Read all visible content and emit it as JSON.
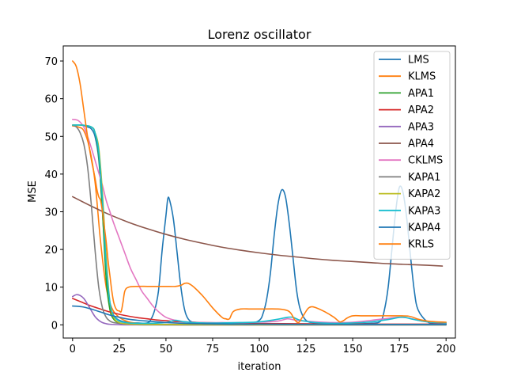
{
  "chart_data": {
    "type": "line",
    "title": "Lorenz oscillator",
    "xlabel": "iteration",
    "ylabel": "MSE",
    "xlim": [
      -5,
      205
    ],
    "ylim": [
      -3.5,
      74
    ],
    "xticks": [
      0,
      25,
      50,
      75,
      100,
      125,
      150,
      175,
      200
    ],
    "yticks": [
      0,
      10,
      20,
      30,
      40,
      50,
      60,
      70
    ],
    "grid": false,
    "legend_position": "top-right",
    "series": [
      {
        "name": "LMS",
        "color": "#1f77b4",
        "x": [
          0,
          5,
          8,
          10,
          12,
          14,
          16,
          18,
          20,
          22,
          25,
          30,
          35,
          40,
          42,
          44,
          46,
          48,
          50,
          51,
          52,
          54,
          56,
          58,
          60,
          62,
          65,
          70,
          80,
          90,
          95,
          100,
          102,
          104,
          106,
          108,
          110,
          112,
          114,
          116,
          118,
          120,
          122,
          125,
          130,
          140,
          150,
          160,
          165,
          167,
          169,
          171,
          173,
          175,
          177,
          179,
          181,
          183,
          185,
          190,
          195,
          200
        ],
        "y": [
          53,
          53,
          52.5,
          52,
          50,
          44,
          30,
          14,
          5,
          2.5,
          1.2,
          0.6,
          0.5,
          0.5,
          1.5,
          4,
          9,
          20,
          29,
          33.5,
          33,
          28,
          19,
          10,
          4,
          1.5,
          0.6,
          0.4,
          0.3,
          0.3,
          0.3,
          1.2,
          3,
          7,
          14,
          24,
          32,
          35.8,
          34,
          27,
          18,
          9,
          4,
          1.2,
          0.5,
          0.3,
          0.3,
          0.4,
          1,
          4,
          10,
          20,
          30,
          36.5,
          35,
          28,
          18,
          9,
          4,
          0.8,
          0.4,
          0.4
        ]
      },
      {
        "name": "KLMS",
        "color": "#ff7f0e",
        "x": [
          0,
          3,
          6,
          9,
          12,
          15,
          18,
          21,
          25,
          30,
          35,
          40,
          45,
          50,
          60,
          70,
          80,
          90,
          100,
          120,
          140,
          160,
          180,
          200
        ],
        "y": [
          52.8,
          52.5,
          51.5,
          47,
          38,
          22,
          10,
          4.5,
          2,
          0.8,
          0.4,
          0.2,
          0.1,
          0.05,
          0,
          0,
          0,
          0,
          0,
          0,
          0,
          0,
          0,
          0
        ]
      },
      {
        "name": "APA1",
        "color": "#2ca02c",
        "x": [
          0,
          5,
          10,
          12,
          14,
          16,
          18,
          20,
          22,
          25,
          30,
          40,
          50,
          60,
          80,
          100,
          120,
          140,
          160,
          180,
          200
        ],
        "y": [
          53,
          53,
          52.5,
          51,
          45,
          30,
          12,
          4,
          1.5,
          0.5,
          0.1,
          0,
          0,
          0,
          0,
          0,
          0,
          0,
          0,
          0,
          0
        ]
      },
      {
        "name": "APA2",
        "color": "#d62728",
        "x": [
          0,
          5,
          10,
          15,
          20,
          25,
          30,
          35,
          40,
          45,
          50,
          55,
          60,
          70,
          80,
          90,
          100,
          120,
          140,
          160,
          180,
          200
        ],
        "y": [
          7,
          6,
          5,
          4.2,
          3.4,
          2.8,
          2.3,
          1.9,
          1.6,
          1.3,
          1.1,
          0.9,
          0.8,
          0.6,
          0.5,
          0.4,
          0.35,
          0.3,
          0.25,
          0.2,
          0.2,
          0.2
        ]
      },
      {
        "name": "APA3",
        "color": "#9467bd",
        "x": [
          0,
          2,
          4,
          6,
          8,
          10,
          12,
          14,
          16,
          18,
          20,
          25,
          30,
          40,
          50,
          60,
          80,
          100,
          120,
          140,
          160,
          180,
          200
        ],
        "y": [
          7.5,
          8,
          7.8,
          7,
          5.5,
          3.8,
          2.2,
          1.2,
          0.6,
          0.3,
          0.15,
          0.05,
          0,
          0,
          0,
          0,
          0,
          0,
          0,
          0,
          0,
          0,
          0
        ]
      },
      {
        "name": "APA4",
        "color": "#8c564b",
        "x": [
          0,
          10,
          20,
          30,
          40,
          50,
          60,
          70,
          80,
          90,
          100,
          110,
          120,
          130,
          140,
          150,
          160,
          170,
          180,
          190,
          198
        ],
        "y": [
          34,
          31.5,
          29.2,
          27.2,
          25.5,
          24,
          22.7,
          21.6,
          20.6,
          19.8,
          19.1,
          18.5,
          18,
          17.5,
          17.1,
          16.8,
          16.5,
          16.2,
          16,
          15.8,
          15.6
        ]
      },
      {
        "name": "CKLMS",
        "color": "#e377c2",
        "x": [
          0,
          3,
          6,
          8,
          10,
          13,
          16,
          18,
          20,
          22,
          25,
          28,
          31,
          34,
          37,
          40,
          43,
          46,
          50,
          55,
          60,
          70,
          80,
          90,
          100,
          110,
          115,
          120,
          130,
          140,
          150,
          160,
          170,
          175,
          180,
          185,
          190,
          195,
          200
        ],
        "y": [
          54.5,
          54.2,
          52.5,
          50,
          47,
          42,
          37,
          33,
          30,
          27,
          23,
          19,
          15,
          12,
          9,
          7,
          5,
          3.5,
          2,
          1.2,
          0.8,
          0.6,
          0.6,
          0.6,
          0.7,
          1,
          1.6,
          1.2,
          0.8,
          0.6,
          0.7,
          1.2,
          1.8,
          2,
          1.8,
          1.2,
          0.8,
          0.6,
          0.5
        ]
      },
      {
        "name": "KAPA1",
        "color": "#7f7f7f",
        "x": [
          0,
          2,
          4,
          6,
          8,
          10,
          12,
          14,
          16,
          18,
          20,
          22,
          25,
          30,
          35,
          40,
          50,
          60,
          80,
          100,
          120,
          140,
          160,
          180,
          200
        ],
        "y": [
          53,
          52.5,
          51,
          48,
          42,
          32,
          20,
          10,
          4.5,
          2,
          1,
          0.6,
          0.4,
          0.3,
          0.2,
          0.1,
          0,
          0,
          0,
          0,
          0,
          0,
          0,
          0,
          0
        ]
      },
      {
        "name": "KAPA2",
        "color": "#bcbd22",
        "x": [
          0,
          5,
          10,
          12,
          14,
          16,
          18,
          20,
          22,
          25,
          30,
          40,
          50,
          60,
          80,
          100,
          120,
          140,
          160,
          180,
          200
        ],
        "y": [
          53,
          53,
          52.5,
          51,
          47,
          35,
          18,
          6,
          2,
          0.6,
          0.2,
          0.1,
          0.1,
          0.1,
          0.1,
          0.1,
          0.1,
          0.1,
          0.1,
          0.1,
          0.1
        ]
      },
      {
        "name": "KAPA3",
        "color": "#17becf",
        "x": [
          0,
          5,
          10,
          12,
          14,
          16,
          18,
          20,
          22,
          25,
          30,
          40,
          50,
          55,
          60,
          70,
          80,
          90,
          100,
          110,
          115,
          118,
          122,
          130,
          140,
          150,
          160,
          170,
          175,
          178,
          182,
          190,
          200
        ],
        "y": [
          53,
          53,
          52.5,
          51,
          46,
          33,
          16,
          6,
          2.5,
          1,
          0.5,
          0.4,
          0.6,
          1.2,
          0.8,
          0.5,
          0.5,
          0.6,
          0.8,
          1.5,
          2,
          2,
          1.2,
          0.6,
          0.4,
          0.5,
          0.8,
          1.5,
          2,
          2,
          1.5,
          0.8,
          0.5
        ]
      },
      {
        "name": "KAPA4",
        "color": "#1f77b4",
        "x": [
          0,
          5,
          10,
          15,
          20,
          25,
          30,
          35,
          40,
          45,
          50,
          60,
          70,
          80,
          90,
          100,
          120,
          140,
          160,
          180,
          200
        ],
        "y": [
          5,
          4.8,
          4.2,
          3.4,
          2.6,
          2,
          1.5,
          1.2,
          1,
          0.8,
          0.6,
          0.4,
          0.3,
          0.25,
          0.2,
          0.2,
          0.15,
          0.15,
          0.1,
          0.1,
          0.1
        ]
      },
      {
        "name": "KRLS",
        "color": "#ff7f0e",
        "x": [
          0,
          2,
          4,
          6,
          8,
          10,
          12,
          13,
          14,
          15,
          16,
          17,
          18,
          19,
          20,
          21,
          22,
          23,
          24,
          25,
          26,
          27,
          28,
          30,
          35,
          40,
          45,
          50,
          55,
          58,
          60,
          62,
          65,
          70,
          75,
          80,
          82,
          84,
          86,
          90,
          95,
          100,
          110,
          115,
          117,
          119,
          121,
          123,
          126,
          128,
          130,
          135,
          140,
          143,
          145,
          147,
          150,
          155,
          160,
          170,
          180,
          185,
          190,
          195,
          200
        ],
        "y": [
          70,
          68.5,
          64,
          57,
          50,
          44,
          39,
          36,
          34,
          33,
          30,
          26,
          22,
          17,
          13,
          9,
          6,
          4.5,
          3.8,
          3.7,
          3.5,
          6,
          9,
          10,
          10.2,
          10.2,
          10.2,
          10.2,
          10.2,
          10.5,
          11,
          11,
          10,
          7.5,
          4.5,
          2,
          1.6,
          1.6,
          3.5,
          4.2,
          4.2,
          4.2,
          4.2,
          3.8,
          3,
          1.3,
          0.6,
          2,
          4.3,
          4.8,
          4.6,
          3.5,
          2,
          0.8,
          1.1,
          1.8,
          2.4,
          2.4,
          2.4,
          2.4,
          2.3,
          1.5,
          1,
          0.8,
          0.7
        ]
      }
    ]
  }
}
